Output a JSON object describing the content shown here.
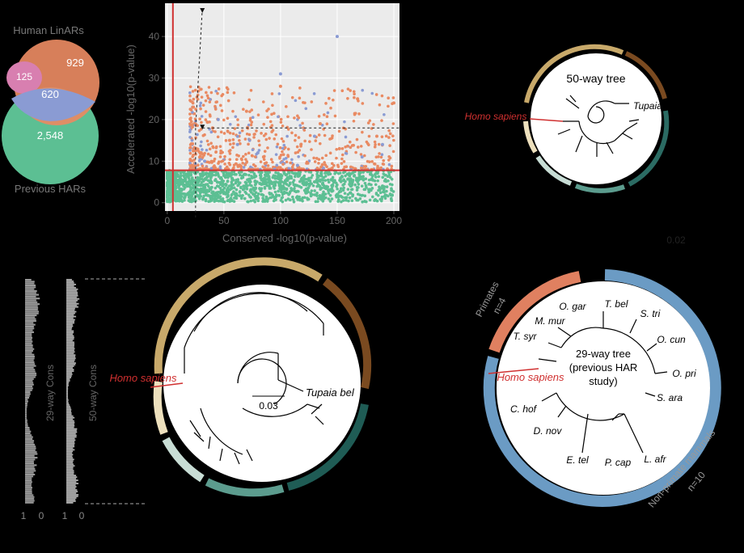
{
  "venn": {
    "top_label": "Human LinARs",
    "bottom_label": "Previous HARs",
    "only_top": "929",
    "only_pink": "125",
    "overlap": "620",
    "only_bottom": "2,548"
  },
  "scatter": {
    "xlabel": "Conserved -log10(p-value)",
    "ylabel": "Accelerated -log10(p-value)",
    "x_ticks": [
      "0",
      "50",
      "100",
      "150",
      "200"
    ],
    "y_ticks": [
      "0",
      "10",
      "20",
      "30",
      "40"
    ]
  },
  "chart_data": {
    "type": "scatter",
    "title": "",
    "xlabel": "Conserved -log10(p-value)",
    "ylabel": "Accelerated -log10(p-value)",
    "xlim": [
      -2,
      205
    ],
    "ylim": [
      -2,
      48
    ],
    "hlines": [
      7.8,
      18
    ],
    "vlines": [
      5,
      25,
      31
    ],
    "series": [
      {
        "color": "#5cbf93",
        "x": [
          2,
          5,
          8,
          12,
          18,
          25,
          35,
          48,
          60,
          75,
          90,
          110,
          130,
          150,
          170,
          190,
          198
        ],
        "y": [
          3,
          6,
          2,
          5,
          4,
          7,
          3,
          5,
          2,
          6,
          4,
          3,
          5,
          2,
          6,
          4,
          3
        ]
      },
      {
        "color": "#e98a62",
        "x": [
          30,
          40,
          55,
          70,
          85,
          100,
          118,
          135,
          152,
          168,
          185,
          200
        ],
        "y": [
          12,
          18,
          15,
          22,
          11,
          28,
          14,
          19,
          13,
          25,
          16,
          24
        ]
      },
      {
        "color": "#8a9bd3",
        "x": [
          33,
          45,
          62,
          80,
          100,
          115,
          130,
          150,
          172,
          190
        ],
        "y": [
          10,
          20,
          14,
          12,
          31,
          9,
          16,
          40,
          11,
          14
        ]
      }
    ]
  },
  "tree_top": {
    "title": "50-way tree",
    "homo": "Homo sapiens",
    "tupaia": "Tupaia",
    "scale": "0.02"
  },
  "tree_mid": {
    "homo": "Homo sapiens",
    "tupaia": "Tupaia bel",
    "scale": "0.03"
  },
  "tracks": {
    "label29": "29-way Cons",
    "label50": "50-way Cons",
    "ticks": [
      "1",
      "0",
      "1",
      "0"
    ]
  },
  "tree29": {
    "title1": "29-way tree",
    "title2": "(previous HAR",
    "title3": "study)",
    "primates": "Primates",
    "primates_n": "n=4",
    "nonprimates": "Non-primate mammals",
    "nonprimates_n": "n=10",
    "homo": "Homo sapiens",
    "species": [
      "T. bel",
      "S. tri",
      "O. cun",
      "O. pri",
      "S. ara",
      "L. afr",
      "P. cap",
      "E. tel",
      "D. nov",
      "C. hof",
      "T. syr",
      "M. mur",
      "O. gar"
    ],
    "colors": {
      "primates": "#e08060",
      "nonprimates": "#6b9bc4"
    }
  }
}
